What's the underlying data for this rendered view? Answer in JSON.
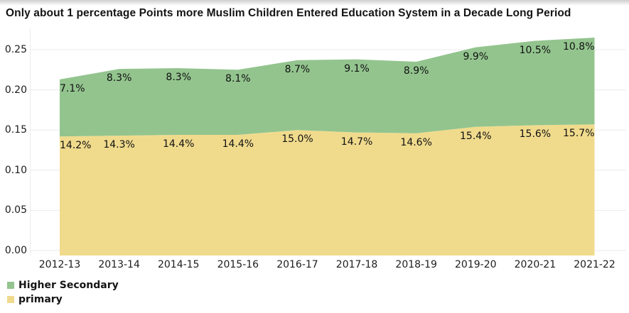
{
  "title": "Only about 1 percentage Points more Muslim Children Entered Education System in a Decade Long Period",
  "chart_data": {
    "type": "area",
    "stacked": true,
    "title": "Only about 1 percentage Points more Muslim Children Entered Education System in a Decade Long Period",
    "categories": [
      "2012-13",
      "2013-14",
      "2014-15",
      "2015-16",
      "2016-17",
      "2017-18",
      "2018-19",
      "2019-20",
      "2020-21",
      "2021-22"
    ],
    "series": [
      {
        "name": "primary",
        "color": "#f0db8d",
        "values_percent": [
          14.2,
          14.3,
          14.4,
          14.4,
          15.0,
          14.7,
          14.6,
          15.4,
          15.6,
          15.7
        ]
      },
      {
        "name": "Higher Secondary",
        "color": "#93c48e",
        "values_percent": [
          7.1,
          8.3,
          8.3,
          8.1,
          8.7,
          9.1,
          8.9,
          9.9,
          10.5,
          10.8
        ]
      }
    ],
    "stack_order": "bottom-to-top",
    "data_label_format": "{value}%",
    "y_axis": {
      "ticks": [
        "0.00",
        "0.05",
        "0.10",
        "0.15",
        "0.20",
        "0.25"
      ],
      "tick_step": 0.05,
      "min": 0.0,
      "max": 0.25
    },
    "x_axis": {
      "label": "",
      "ticks": [
        "2012-13",
        "2013-14",
        "2014-15",
        "2015-16",
        "2016-17",
        "2017-18",
        "2018-19",
        "2019-20",
        "2020-21",
        "2021-22"
      ]
    },
    "grid": "horizontal",
    "legend_position": "bottom-left"
  },
  "legend": {
    "items": [
      {
        "label": "Higher Secondary",
        "color": "#93c48e"
      },
      {
        "label": "primary",
        "color": "#f0db8d"
      }
    ]
  },
  "colors": {
    "grid_line": "#ebebeb",
    "axis_line": "#ececec",
    "text": "#1c1c1c"
  }
}
